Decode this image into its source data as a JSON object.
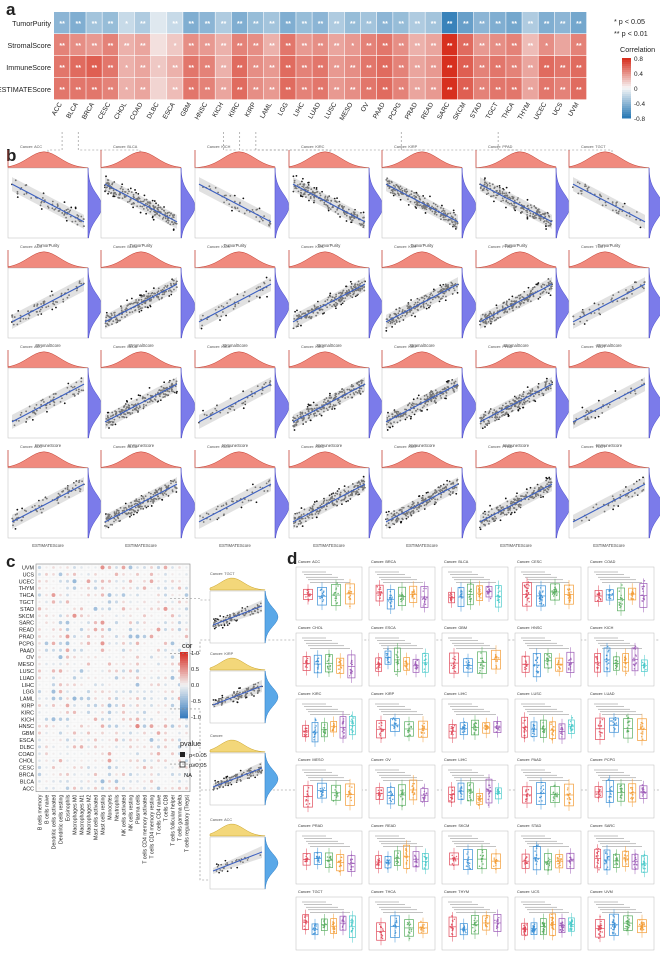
{
  "panels": {
    "a": "a",
    "b": "b",
    "c": "c",
    "d": "d"
  },
  "chart_data": [
    {
      "type": "heatmap",
      "panel": "a",
      "rows": [
        "TumorPurity",
        "StromalScore",
        "ImmuneScore",
        "ESTIMATEScore"
      ],
      "columns": [
        "ACC",
        "BLCA",
        "BRCA",
        "CESC",
        "CHOL",
        "COAD",
        "DLBC",
        "ESCA",
        "GBM",
        "HNSC",
        "KICH",
        "KIRC",
        "KIRP",
        "LAML",
        "LGG",
        "LIHC",
        "LUAD",
        "LUSC",
        "MESO",
        "OV",
        "PAAD",
        "PCPG",
        "PRAD",
        "READ",
        "SARC",
        "SKCM",
        "STAD",
        "TGCT",
        "THCA",
        "THYM",
        "UCEC",
        "UCS",
        "UVM"
      ],
      "values": [
        [
          -0.45,
          -0.5,
          -0.35,
          -0.4,
          -0.2,
          -0.3,
          -0.1,
          -0.2,
          -0.5,
          -0.45,
          -0.3,
          -0.5,
          -0.4,
          -0.35,
          -0.5,
          -0.4,
          -0.45,
          -0.3,
          -0.4,
          -0.35,
          -0.45,
          -0.4,
          -0.3,
          -0.35,
          -0.8,
          -0.6,
          -0.45,
          -0.5,
          -0.55,
          -0.3,
          -0.5,
          -0.45,
          -0.55
        ],
        [
          0.5,
          0.45,
          0.4,
          0.5,
          0.3,
          0.35,
          0.1,
          0.2,
          0.45,
          0.4,
          0.3,
          0.5,
          0.45,
          0.3,
          0.55,
          0.4,
          0.45,
          0.35,
          0.4,
          0.5,
          0.55,
          0.45,
          0.3,
          0.35,
          0.85,
          0.6,
          0.4,
          0.45,
          0.5,
          0.25,
          0.45,
          0.35,
          0.5
        ],
        [
          0.55,
          0.6,
          0.65,
          0.55,
          0.3,
          0.35,
          0.2,
          0.3,
          0.55,
          0.5,
          0.3,
          0.6,
          0.45,
          0.4,
          0.6,
          0.5,
          0.55,
          0.4,
          0.45,
          0.55,
          0.6,
          0.5,
          0.35,
          0.4,
          0.85,
          0.65,
          0.5,
          0.55,
          0.5,
          0.35,
          0.6,
          0.55,
          0.6
        ],
        [
          0.55,
          0.55,
          0.55,
          0.5,
          0.3,
          0.35,
          0.15,
          0.25,
          0.55,
          0.5,
          0.35,
          0.6,
          0.45,
          0.4,
          0.6,
          0.5,
          0.55,
          0.4,
          0.45,
          0.55,
          0.6,
          0.5,
          0.35,
          0.4,
          0.85,
          0.65,
          0.5,
          0.55,
          0.55,
          0.35,
          0.55,
          0.5,
          0.6
        ]
      ],
      "significance": [
        [
          "**",
          "**",
          "**",
          "**",
          "*",
          "**",
          "",
          "**",
          "**",
          "**",
          "**",
          "**",
          "**",
          "**",
          "**",
          "**",
          "**",
          "**",
          "**",
          "**",
          "**",
          "**",
          "**",
          "**",
          "**",
          "**",
          "**",
          "**",
          "**",
          "**",
          "**",
          "**",
          "**"
        ],
        [
          "**",
          "**",
          "**",
          "**",
          "**",
          "**",
          "",
          "*",
          "**",
          "**",
          "**",
          "**",
          "**",
          "**",
          "**",
          "**",
          "**",
          "**",
          "*",
          "**",
          "**",
          "**",
          "**",
          "**",
          "**",
          "**",
          "**",
          "**",
          "**",
          "**",
          "*",
          "",
          "**"
        ],
        [
          "**",
          "**",
          "**",
          "**",
          "*",
          "**",
          "*",
          "**",
          "**",
          "**",
          "**",
          "**",
          "**",
          "**",
          "**",
          "**",
          "**",
          "**",
          "**",
          "**",
          "**",
          "**",
          "**",
          "**",
          "**",
          "**",
          "**",
          "**",
          "**",
          "**",
          "**",
          "**",
          "**"
        ],
        [
          "**",
          "**",
          "**",
          "**",
          "*",
          "**",
          "",
          "**",
          "**",
          "**",
          "**",
          "**",
          "**",
          "**",
          "**",
          "**",
          "**",
          "**",
          "**",
          "**",
          "**",
          "**",
          "**",
          "**",
          "**",
          "**",
          "**",
          "**",
          "**",
          "**",
          "**",
          "**",
          "**"
        ]
      ],
      "legend": {
        "sig_labels": [
          "* p < 0.05",
          "** p < 0.01"
        ],
        "title": "Correlation",
        "ticks": [
          "0.8",
          "0.4",
          "0",
          "-0.4",
          "-0.8"
        ]
      },
      "colors": {
        "neg": "#2c7bb6",
        "zero": "#f7f7f7",
        "pos": "#d7301f"
      }
    },
    {
      "type": "scatter",
      "panel": "b",
      "cancer_titles": [
        "Cancer: ACC",
        "Cancer: BLCA",
        "Cancer: KICH",
        "Cancer: KIRC",
        "Cancer: KIRP",
        "Cancer: PPAD",
        "Cancer: TGCT"
      ],
      "row_xlabels": [
        "TumorPurity",
        "StromalScore",
        "ImmuneScore",
        "ESTIMATEScore"
      ],
      "row_slopes": [
        -1,
        1,
        1,
        1
      ],
      "colors": {
        "top_density": "#f08a7e",
        "side_density": "#7b7bea",
        "line": "#3b5fc0",
        "band": "#c9c9c9"
      }
    },
    {
      "type": "heatmap",
      "panel": "c",
      "rows": [
        "UVM",
        "UCS",
        "UCEC",
        "THYM",
        "THCA",
        "TGCT",
        "STAD",
        "SKCM",
        "SARC",
        "READ",
        "PRAD",
        "PCPG",
        "PAAD",
        "OV",
        "MESO",
        "LUSC",
        "LUAD",
        "LIHC",
        "LGG",
        "LAML",
        "KIRP",
        "KIRC",
        "KICH",
        "HNSC",
        "GBM",
        "ESCA",
        "DLBC",
        "COAD",
        "CHOL",
        "CESC",
        "BRCA",
        "BLCA",
        "ACC"
      ],
      "columns": [
        "B cells memory",
        "B cells naive",
        "Dendritic cells activated",
        "Dendritic cells resting",
        "Eosinophils",
        "Macrophages M0",
        "Macrophages M1",
        "Macrophages M2",
        "Mast cells activated",
        "Mast cells resting",
        "Monocytes",
        "Neutrophils",
        "NK cells activated",
        "NK cells resting",
        "Plasma cells",
        "T cells CD4 memory activated",
        "T cells CD4 memory resting",
        "T cells CD4 naive",
        "T cells CD8",
        "T cells follicular helper",
        "T cells gamma delta",
        "T cells regulatory (Tregs)"
      ],
      "legend": {
        "title": "cor",
        "ticks": [
          "1.0",
          "0.5",
          "0.0",
          "-0.5",
          "-1.0"
        ],
        "pvalue_title": "pvalue",
        "pvalue_labels": [
          "p<0.05",
          "p≥0.05",
          "NA"
        ]
      },
      "side_titles": [
        "Cancer: TGCT",
        "Cancer: KIRP",
        "Cancer: ",
        "Cancer: ACC"
      ]
    },
    {
      "type": "box",
      "panel": "d",
      "grid_titles": [
        [
          "Cancer: ACC",
          "Cancer: BRCA",
          "Cancer: BLCA",
          "Cancer: CESC",
          "Cancer: COAD"
        ],
        [
          "Cancer: CHOL",
          "Cancer: ESCA",
          "Cancer: GBM",
          "Cancer: HNSC",
          "Cancer: KICH"
        ],
        [
          "Cancer: KIRC",
          "Cancer: KIRP",
          "Cancer: LIHC",
          "Cancer: LUSC",
          "Cancer: LUAD"
        ],
        [
          "Cancer: MESO",
          "Cancer: OV",
          "Cancer: LIHC",
          "Cancer: PAAD",
          "Cancer: PCPG"
        ],
        [
          "Cancer: PRAD",
          "Cancer: READ",
          "Cancer: SKCM",
          "Cancer: STAD",
          "Cancer: SARC"
        ],
        [
          "Cancer: TGCT",
          "Cancer: THCA",
          "Cancer: THYM",
          "Cancer: UCS",
          "Cancer: UVM"
        ]
      ],
      "subtype_colors": [
        "#e0495a",
        "#3a8fd6",
        "#5aae61",
        "#f39c35",
        "#9b59b6",
        "#48c9c9"
      ]
    }
  ]
}
